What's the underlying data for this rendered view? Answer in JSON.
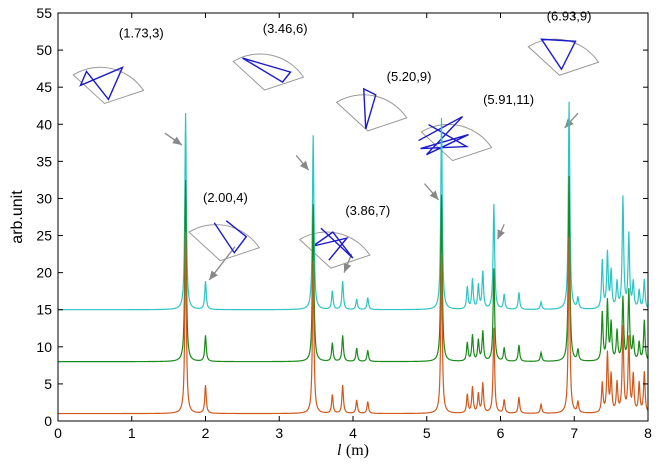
{
  "chart_data": {
    "type": "line",
    "xlabel_italic": "l",
    "xlabel_unit": "(m)",
    "ylabel": "arb.unit",
    "xlim": [
      0,
      8
    ],
    "ylim": [
      0,
      55
    ],
    "xticks": [
      "0",
      "1",
      "2",
      "3",
      "4",
      "5",
      "6",
      "7",
      "8"
    ],
    "yticks": [
      "0",
      "5",
      "10",
      "15",
      "20",
      "25",
      "30",
      "35",
      "40",
      "45",
      "50",
      "55"
    ],
    "grid": false,
    "series": [
      {
        "color": "#2ec4c4",
        "baseline": 15,
        "peaks": [
          [
            1.73,
            41.5
          ],
          [
            2.0,
            18.8
          ],
          [
            3.46,
            38.5
          ],
          [
            3.72,
            17.5
          ],
          [
            3.86,
            18.8
          ],
          [
            4.05,
            16.4
          ],
          [
            4.2,
            16.6
          ],
          [
            5.2,
            40.8
          ],
          [
            5.55,
            18.0
          ],
          [
            5.62,
            19.0
          ],
          [
            5.7,
            18.2
          ],
          [
            5.76,
            20.0
          ],
          [
            5.91,
            29.2
          ],
          [
            6.05,
            17.0
          ],
          [
            6.25,
            17.3
          ],
          [
            6.55,
            16.0
          ],
          [
            6.93,
            43.0
          ],
          [
            7.05,
            16.5
          ],
          [
            7.38,
            21.5
          ],
          [
            7.45,
            22.5
          ],
          [
            7.5,
            20.0
          ],
          [
            7.58,
            18.5
          ],
          [
            7.66,
            30.0
          ],
          [
            7.74,
            25.0
          ],
          [
            7.8,
            18.5
          ],
          [
            7.88,
            17.5
          ],
          [
            7.95,
            19.0
          ]
        ]
      },
      {
        "color": "#1a8a1a",
        "baseline": 8,
        "peaks": [
          [
            1.73,
            32.5
          ],
          [
            2.0,
            11.5
          ],
          [
            3.46,
            29.2
          ],
          [
            3.72,
            10.5
          ],
          [
            3.86,
            11.5
          ],
          [
            4.05,
            9.8
          ],
          [
            4.2,
            9.5
          ],
          [
            5.2,
            30.5
          ],
          [
            5.55,
            10.5
          ],
          [
            5.62,
            11.5
          ],
          [
            5.7,
            10.8
          ],
          [
            5.76,
            12.0
          ],
          [
            5.91,
            20.5
          ],
          [
            6.05,
            9.8
          ],
          [
            6.25,
            10.2
          ],
          [
            6.55,
            9.2
          ],
          [
            6.93,
            33.0
          ],
          [
            7.05,
            9.5
          ],
          [
            7.38,
            14.5
          ],
          [
            7.45,
            16.0
          ],
          [
            7.5,
            13.0
          ],
          [
            7.58,
            12.0
          ],
          [
            7.66,
            16.5
          ],
          [
            7.74,
            17.5
          ],
          [
            7.8,
            11.0
          ],
          [
            7.88,
            10.5
          ],
          [
            7.95,
            13.5
          ]
        ]
      },
      {
        "color": "#d05a1e",
        "baseline": 1,
        "peaks": [
          [
            1.73,
            25.5
          ],
          [
            2.0,
            4.8
          ],
          [
            3.46,
            21.5
          ],
          [
            3.72,
            3.5
          ],
          [
            3.86,
            4.8
          ],
          [
            4.05,
            2.8
          ],
          [
            4.2,
            2.6
          ],
          [
            5.2,
            22.5
          ],
          [
            5.55,
            3.5
          ],
          [
            5.62,
            4.5
          ],
          [
            5.7,
            3.6
          ],
          [
            5.76,
            5.0
          ],
          [
            5.91,
            12.5
          ],
          [
            6.05,
            2.8
          ],
          [
            6.25,
            3.2
          ],
          [
            6.55,
            2.2
          ],
          [
            6.93,
            24.8
          ],
          [
            7.05,
            2.5
          ],
          [
            7.38,
            5.0
          ],
          [
            7.45,
            9.0
          ],
          [
            7.5,
            6.0
          ],
          [
            7.58,
            5.0
          ],
          [
            7.66,
            12.5
          ],
          [
            7.74,
            11.0
          ],
          [
            7.8,
            6.0
          ],
          [
            7.88,
            5.0
          ],
          [
            7.95,
            6.5
          ]
        ]
      }
    ],
    "annotations": [
      {
        "label": "(1.73,3)",
        "text_at": [
          1.13,
          51.7
        ],
        "arrow_from": [
          1.45,
          38.8
        ],
        "arrow_to": [
          1.68,
          37.2
        ],
        "icon_at": [
          0.63,
          48.2
        ],
        "orbit": "star"
      },
      {
        "label": "(2.00,4)",
        "text_at": [
          2.27,
          29.5
        ],
        "arrow_from": [
          2.4,
          23.5
        ],
        "arrow_to": [
          2.05,
          19.0
        ],
        "icon_at": [
          2.2,
          27.0
        ],
        "orbit": "four"
      },
      {
        "label": "(3.46,6)",
        "text_at": [
          3.08,
          52.3
        ],
        "arrow_from": [
          3.23,
          35.8
        ],
        "arrow_to": [
          3.4,
          33.8
        ],
        "icon_at": [
          2.8,
          50.0
        ],
        "orbit": "triangle-wide"
      },
      {
        "label": "(3.86,7)",
        "text_at": [
          4.2,
          27.8
        ],
        "arrow_from": [
          3.98,
          22.5
        ],
        "arrow_to": [
          3.88,
          20.0
        ],
        "icon_at": [
          3.7,
          26.0
        ],
        "orbit": "seven"
      },
      {
        "label": "(5.20,9)",
        "text_at": [
          4.76,
          45.8
        ],
        "arrow_from": [
          4.97,
          32.0
        ],
        "arrow_to": [
          5.16,
          29.8
        ],
        "icon_at": [
          4.2,
          44.5
        ],
        "orbit": "thin-triangle"
      },
      {
        "label": "(5.91,11)",
        "text_at": [
          6.11,
          42.7
        ],
        "arrow_from": [
          6.05,
          26.5
        ],
        "arrow_to": [
          5.96,
          24.5
        ],
        "icon_at": [
          5.35,
          40.5
        ],
        "orbit": "eleven"
      },
      {
        "label": "(6.93,9)",
        "text_at": [
          6.93,
          54.0
        ],
        "arrow_from": [
          7.05,
          41.5
        ],
        "arrow_to": [
          6.87,
          39.5
        ],
        "icon_at": [
          6.8,
          52.0
        ],
        "orbit": "triangle-small"
      }
    ]
  }
}
